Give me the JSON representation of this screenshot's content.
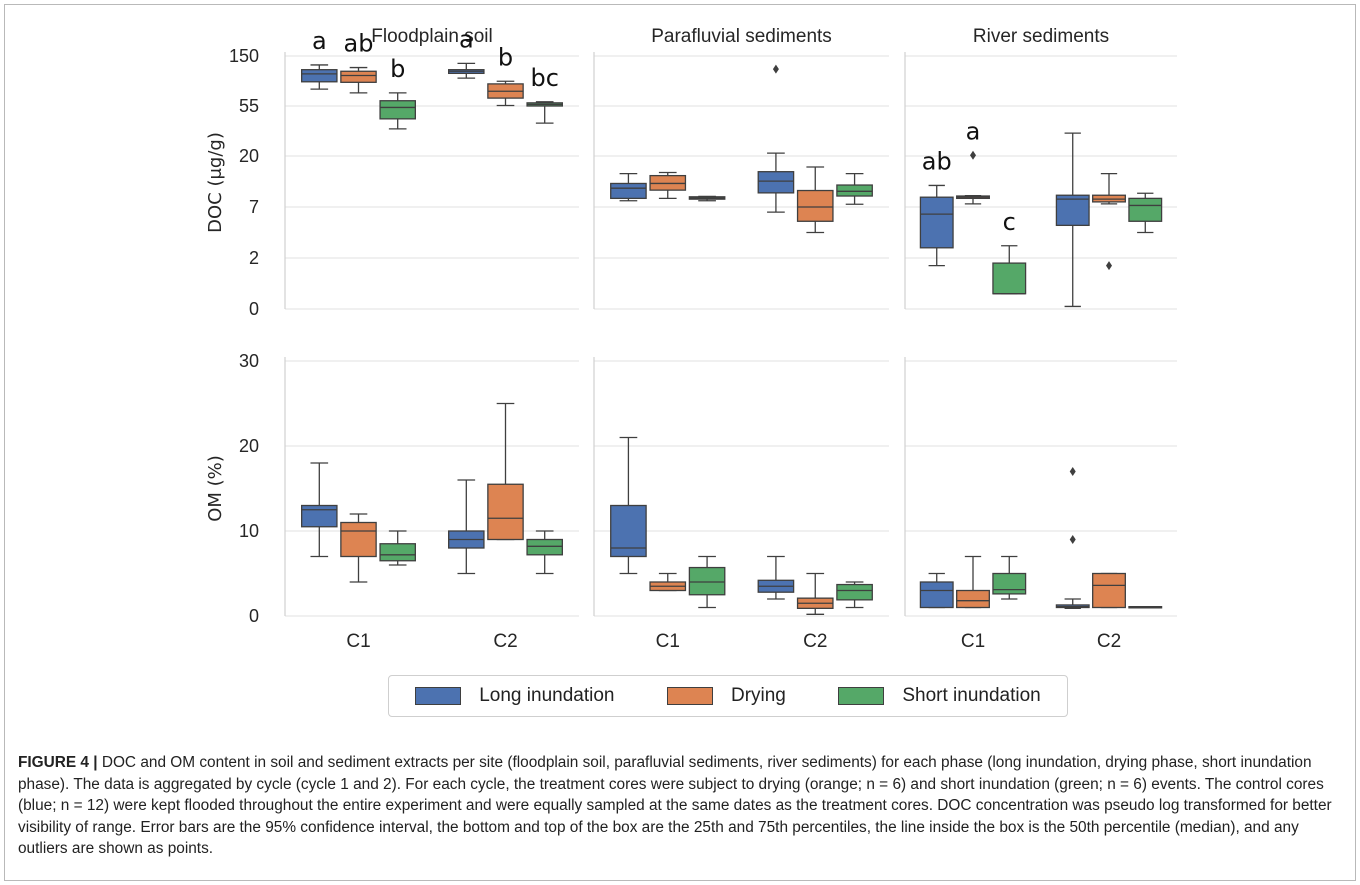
{
  "colors": {
    "long": "#4c72b0",
    "drying": "#dd8452",
    "short": "#55a868",
    "grid": "#e6e6e6",
    "spine": "#d0d0d0",
    "whisker": "#3f3f3f",
    "text": "#262626"
  },
  "chart_data": [
    {
      "type": "box",
      "panel": "DOC - Floodplain soil",
      "title": "Floodplain soil",
      "ylabel": "DOC (μg/g)",
      "scale": "pseudo-log",
      "yticks": [
        "0",
        "2",
        "7",
        "20",
        "55",
        "150"
      ],
      "categories": [
        "C1",
        "C2"
      ],
      "series": [
        {
          "name": "Long inundation",
          "boxes": [
            {
              "whislo": 87,
              "q1": 101,
              "med": 116,
              "q3": 124,
              "whishi": 133,
              "fliers": [],
              "letter": "a"
            },
            {
              "whislo": 108,
              "q1": 117,
              "med": 121,
              "q3": 124,
              "whishi": 136,
              "fliers": [],
              "letter": "a"
            }
          ]
        },
        {
          "name": "Drying",
          "boxes": [
            {
              "whislo": 80,
              "q1": 100,
              "med": 113,
              "q3": 121,
              "whishi": 128,
              "fliers": [],
              "letter": "ab"
            },
            {
              "whislo": 56,
              "q1": 70,
              "med": 83,
              "q3": 97,
              "whishi": 102,
              "fliers": [],
              "letter": "b"
            }
          ]
        },
        {
          "name": "Short inundation",
          "boxes": [
            {
              "whislo": 39,
              "q1": 46,
              "med": 54,
              "q3": 65,
              "whishi": 80,
              "fliers": [],
              "letter": "b"
            },
            {
              "whislo": 43,
              "q1": 55,
              "med": 58,
              "q3": 61,
              "whishi": 63,
              "fliers": [],
              "letter": "bc"
            }
          ]
        }
      ]
    },
    {
      "type": "box",
      "panel": "DOC - Parafluvial sediments",
      "title": "Parafluvial sediments",
      "scale": "pseudo-log",
      "categories": [
        "C1",
        "C2"
      ],
      "series": [
        {
          "name": "Long inundation",
          "boxes": [
            {
              "whislo": 8.6,
              "q1": 9.2,
              "med": 11.8,
              "q3": 13.0,
              "whishi": 15.5,
              "fliers": []
            },
            {
              "whislo": 6.5,
              "q1": 10.6,
              "med": 13.6,
              "q3": 16.0,
              "whishi": 22.0,
              "fliers": [
                125
              ]
            }
          ]
        },
        {
          "name": "Drying",
          "boxes": [
            {
              "whislo": 9.2,
              "q1": 11.3,
              "med": 13.0,
              "q3": 15.0,
              "whishi": 15.8,
              "fliers": []
            },
            {
              "whislo": 4.5,
              "q1": 5.6,
              "med": 7.0,
              "q3": 11.2,
              "whishi": 17.2,
              "fliers": []
            }
          ]
        },
        {
          "name": "Short inundation",
          "boxes": [
            {
              "whislo": 8.6,
              "q1": 9.0,
              "med": 9.3,
              "q3": 9.6,
              "whishi": 9.7,
              "fliers": []
            },
            {
              "whislo": 7.7,
              "q1": 9.8,
              "med": 11.0,
              "q3": 12.6,
              "whishi": 15.5,
              "fliers": []
            }
          ]
        }
      ]
    },
    {
      "type": "box",
      "panel": "DOC - River sediments",
      "title": "River sediments",
      "scale": "pseudo-log",
      "categories": [
        "C1",
        "C2"
      ],
      "series": [
        {
          "name": "Long inundation",
          "boxes": [
            {
              "whislo": 1.7,
              "q1": 3.0,
              "med": 6.3,
              "q3": 9.5,
              "whishi": 12.5,
              "fliers": [],
              "letter": "ab"
            },
            {
              "whislo": 0.1,
              "q1": 5.2,
              "med": 9.0,
              "q3": 10.0,
              "whishi": 36.0,
              "fliers": []
            }
          ]
        },
        {
          "name": "Drying",
          "boxes": [
            {
              "whislo": 7.8,
              "q1": 9.2,
              "med": 9.5,
              "q3": 9.8,
              "whishi": 9.9,
              "fliers": [
                20.5
              ],
              "letter": "a"
            },
            {
              "whislo": 7.8,
              "q1": 8.3,
              "med": 9.0,
              "q3": 10.0,
              "whishi": 15.5,
              "fliers": [
                1.7
              ]
            }
          ]
        },
        {
          "name": "Short inundation",
          "boxes": [
            {
              "whislo": 0.6,
              "q1": 0.6,
              "med": 0.6,
              "q3": 1.8,
              "whishi": 3.2,
              "fliers": [],
              "letter": "c"
            },
            {
              "whislo": 4.5,
              "q1": 5.6,
              "med": 7.4,
              "q3": 9.2,
              "whishi": 10.5,
              "fliers": []
            }
          ]
        }
      ]
    },
    {
      "type": "box",
      "panel": "OM - Floodplain soil",
      "ylabel": "OM (%)",
      "ylim": [
        0,
        30
      ],
      "yticks": [
        "0",
        "10",
        "20",
        "30"
      ],
      "categories": [
        "C1",
        "C2"
      ],
      "series": [
        {
          "name": "Long inundation",
          "boxes": [
            {
              "whislo": 7,
              "q1": 10.5,
              "med": 12.5,
              "q3": 13,
              "whishi": 18,
              "fliers": []
            },
            {
              "whislo": 5,
              "q1": 8,
              "med": 9,
              "q3": 10,
              "whishi": 16,
              "fliers": []
            }
          ]
        },
        {
          "name": "Drying",
          "boxes": [
            {
              "whislo": 4,
              "q1": 7,
              "med": 10,
              "q3": 11,
              "whishi": 12,
              "fliers": []
            },
            {
              "whislo": 9,
              "q1": 9,
              "med": 11.5,
              "q3": 15.5,
              "whishi": 25,
              "fliers": []
            }
          ]
        },
        {
          "name": "Short inundation",
          "boxes": [
            {
              "whislo": 6,
              "q1": 6.5,
              "med": 7.2,
              "q3": 8.5,
              "whishi": 10,
              "fliers": []
            },
            {
              "whislo": 5,
              "q1": 7.2,
              "med": 8.2,
              "q3": 9,
              "whishi": 10,
              "fliers": []
            }
          ]
        }
      ]
    },
    {
      "type": "box",
      "panel": "OM - Parafluvial sediments",
      "ylim": [
        0,
        30
      ],
      "categories": [
        "C1",
        "C2"
      ],
      "series": [
        {
          "name": "Long inundation",
          "boxes": [
            {
              "whislo": 5,
              "q1": 7,
              "med": 8,
              "q3": 13,
              "whishi": 21,
              "fliers": []
            },
            {
              "whislo": 2,
              "q1": 2.8,
              "med": 3.5,
              "q3": 4.2,
              "whishi": 7,
              "fliers": []
            }
          ]
        },
        {
          "name": "Drying",
          "boxes": [
            {
              "whislo": 3,
              "q1": 3,
              "med": 3.5,
              "q3": 4,
              "whishi": 5,
              "fliers": []
            },
            {
              "whislo": 0.2,
              "q1": 0.9,
              "med": 1.5,
              "q3": 2.1,
              "whishi": 5,
              "fliers": []
            }
          ]
        },
        {
          "name": "Short inundation",
          "boxes": [
            {
              "whislo": 1,
              "q1": 2.5,
              "med": 4,
              "q3": 5.7,
              "whishi": 7,
              "fliers": []
            },
            {
              "whislo": 1,
              "q1": 1.9,
              "med": 3,
              "q3": 3.7,
              "whishi": 4,
              "fliers": []
            }
          ]
        }
      ]
    },
    {
      "type": "box",
      "panel": "OM - River sediments",
      "ylim": [
        0,
        30
      ],
      "categories": [
        "C1",
        "C2"
      ],
      "series": [
        {
          "name": "Long inundation",
          "boxes": [
            {
              "whislo": 1,
              "q1": 1,
              "med": 3,
              "q3": 4,
              "whishi": 5,
              "fliers": []
            },
            {
              "whislo": 0.9,
              "q1": 1,
              "med": 1.1,
              "q3": 1.3,
              "whishi": 2,
              "fliers": [
                9,
                17
              ]
            }
          ]
        },
        {
          "name": "Drying",
          "boxes": [
            {
              "whislo": 1,
              "q1": 1,
              "med": 1.8,
              "q3": 3,
              "whishi": 7,
              "fliers": []
            },
            {
              "whislo": 1,
              "q1": 1,
              "med": 3.6,
              "q3": 5,
              "whishi": 5,
              "fliers": []
            }
          ]
        },
        {
          "name": "Short inundation",
          "boxes": [
            {
              "whislo": 2,
              "q1": 2.6,
              "med": 3.1,
              "q3": 5,
              "whishi": 7,
              "fliers": []
            },
            {
              "whislo": 1,
              "q1": 1,
              "med": 1,
              "q3": 1.1,
              "whishi": 1.1,
              "fliers": []
            }
          ]
        }
      ]
    }
  ],
  "legend": {
    "items": [
      {
        "label": "Long inundation",
        "color": "#4c72b0"
      },
      {
        "label": "Drying",
        "color": "#dd8452"
      },
      {
        "label": "Short inundation",
        "color": "#55a868"
      }
    ]
  },
  "caption": {
    "label": "FIGURE 4 |",
    "text": "DOC and OM content in soil and sediment extracts per site (floodplain soil, parafluvial sediments, river sediments) for each phase (long inundation, drying phase, short inundation phase). The data is aggregated by cycle (cycle 1 and 2). For each cycle, the treatment cores were subject to drying (orange; n = 6) and short inundation (green; n = 6) events. The control cores (blue; n = 12) were kept flooded throughout the entire experiment and were equally sampled at the same dates as the treatment cores. DOC concentration was pseudo log transformed for better visibility of range. Error bars are the 95% confidence interval, the bottom and top of the box are the 25th and 75th percentiles, the line inside the box is the 50th percentile (median), and any outliers are shown as points."
  }
}
